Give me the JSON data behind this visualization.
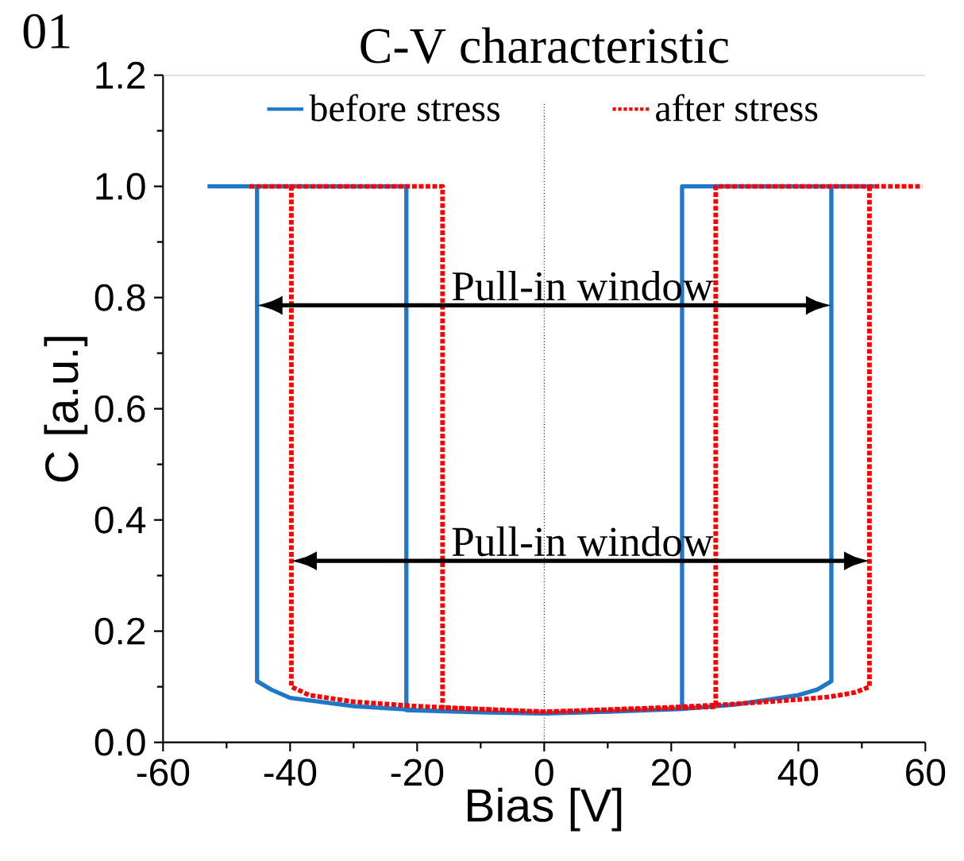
{
  "chart_data": {
    "type": "line",
    "title": "C-V characteristic",
    "xlabel": "Bias [V]",
    "ylabel": "C [a.u.]",
    "xlim": [
      -60,
      60
    ],
    "xticks": [
      -60,
      -40,
      -20,
      0,
      20,
      40,
      60
    ],
    "ylim": [
      0,
      1.2
    ],
    "yticks": [
      {
        "value": 0,
        "label": "0.0"
      },
      {
        "value": 0.2,
        "label": "0.2"
      },
      {
        "value": 0.4,
        "label": "0.4"
      },
      {
        "value": 0.6,
        "label": "0.6"
      },
      {
        "value": 0.8,
        "label": "0.8"
      },
      {
        "value": 1.0,
        "label": "1.0"
      },
      {
        "value": 1.2,
        "label": "1.2"
      }
    ],
    "grid": false,
    "legend": "top",
    "marker": "none",
    "series": [
      {
        "name": "before stress",
        "color": "#1f77c8",
        "line_style": "solid",
        "x": [
          -53,
          -21.7,
          -21.7,
          -10,
          0,
          10,
          21.7,
          21.7,
          52,
          null,
          45.2,
          45.2,
          43,
          40,
          30,
          21.7,
          10,
          0,
          -10,
          -20,
          -30,
          -40,
          -43,
          -45.2,
          -45.2
        ],
        "values": [
          1.0,
          1.0,
          0.058,
          0.054,
          0.052,
          0.055,
          0.06,
          1.0,
          1.0,
          null,
          1.0,
          0.11,
          0.095,
          0.085,
          0.068,
          0.06,
          0.055,
          0.052,
          0.054,
          0.058,
          0.065,
          0.08,
          0.095,
          0.11,
          1.0
        ]
      },
      {
        "name": "after stress",
        "color": "#ff0000",
        "line_style": "dotted",
        "x": [
          -46.4,
          -16,
          -16,
          0,
          27,
          27,
          59.5,
          null,
          51.2,
          51.2,
          49,
          45,
          40,
          30,
          20,
          0,
          -20,
          -30,
          -37,
          -39.8,
          -39.8
        ],
        "values": [
          1.0,
          1.0,
          0.062,
          0.055,
          0.064,
          1.0,
          1.0,
          null,
          1.0,
          0.1,
          0.09,
          0.082,
          0.077,
          0.069,
          0.063,
          0.055,
          0.065,
          0.073,
          0.085,
          0.1,
          1.0
        ]
      }
    ],
    "ref_lines": [
      {
        "axis": "x",
        "value": 0,
        "color": "#000000",
        "line_style": "dotted"
      }
    ],
    "annotations": [
      "01",
      "Pull-in window",
      "Pull-in window"
    ]
  }
}
